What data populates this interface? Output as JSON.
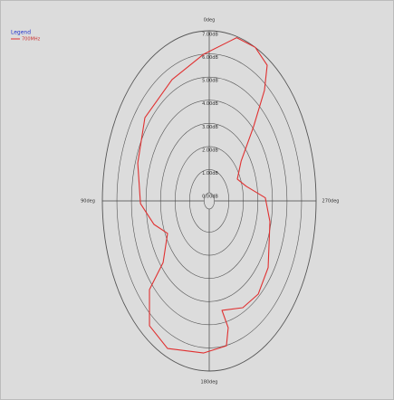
{
  "chart_data": {
    "type": "polar",
    "legend_title": "Legend",
    "angle_labels": [
      "0deg",
      "90deg",
      "180deg",
      "270deg"
    ],
    "angle_ticks": [
      0,
      90,
      180,
      270
    ],
    "rlim": [
      -0.35,
      7
    ],
    "rticks": [
      {
        "value": 0,
        "label": "0.00dB"
      },
      {
        "value": 1,
        "label": "1.00dB"
      },
      {
        "value": 2,
        "label": "2.00dB"
      },
      {
        "value": 3,
        "label": "3.00dB"
      },
      {
        "value": 4,
        "label": "4.00dB"
      },
      {
        "value": 5,
        "label": "5.00dB"
      },
      {
        "value": 6,
        "label": "6.00dB"
      },
      {
        "value": 7,
        "label": "7.00dB"
      }
    ],
    "series": [
      {
        "name": "700MHz",
        "color": "#e03030",
        "theta": [
          345,
          334.5,
          325.8,
          321.5,
          316.4,
          308,
          296,
          284,
          272,
          257.9,
          234.6,
          219.9,
          206.6,
          190.5,
          193.4,
          190.7,
          176.7,
          155.8,
          142.7,
          133,
          130,
          116.1,
          105,
          91.4,
          71.6,
          50.9,
          26,
          3.4
        ],
        "values": [
          6.95,
          7.0,
          6.74,
          5.75,
          4.06,
          2.43,
          1.8,
          2.27,
          3.51,
          3.92,
          4.62,
          4.9,
          4.81,
          4.46,
          5.28,
          6.02,
          6.23,
          6.64,
          6.43,
          5.27,
          3.79,
          2.84,
          3.58,
          4.38,
          4.83,
          5.35,
          5.48,
          6.0
        ]
      }
    ]
  }
}
